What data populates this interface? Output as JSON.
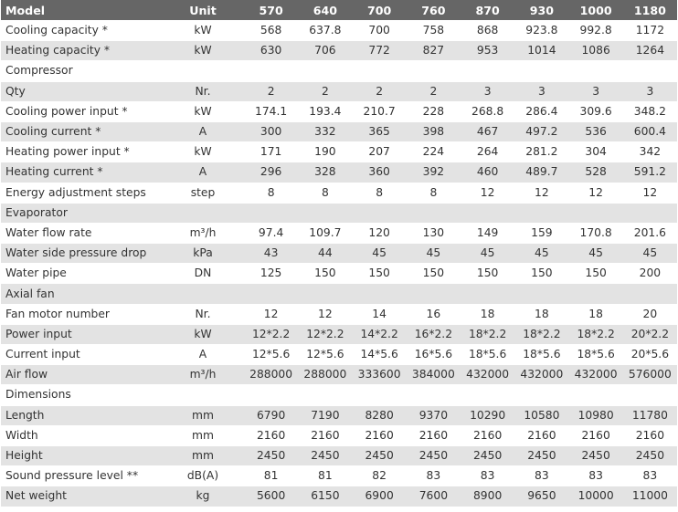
{
  "header": {
    "label": "Model",
    "unit": "Unit",
    "models": [
      "570",
      "640",
      "700",
      "760",
      "870",
      "930",
      "1000",
      "1180"
    ]
  },
  "rows": [
    {
      "kind": "data",
      "label": "Cooling capacity *",
      "unit": "kW",
      "values": [
        "568",
        "637.8",
        "700",
        "758",
        "868",
        "923.8",
        "992.8",
        "1172"
      ]
    },
    {
      "kind": "data",
      "label": "Heating capacity *",
      "unit": "kW",
      "values": [
        "630",
        "706",
        "772",
        "827",
        "953",
        "1014",
        "1086",
        "1264"
      ]
    },
    {
      "kind": "section",
      "label": "Compressor"
    },
    {
      "kind": "data",
      "label": "Qty",
      "unit": "Nr.",
      "values": [
        "2",
        "2",
        "2",
        "2",
        "3",
        "3",
        "3",
        "3"
      ]
    },
    {
      "kind": "data",
      "label": "Cooling power input *",
      "unit": "kW",
      "values": [
        "174.1",
        "193.4",
        "210.7",
        "228",
        "268.8",
        "286.4",
        "309.6",
        "348.2"
      ]
    },
    {
      "kind": "data",
      "label": "Cooling current *",
      "unit": "A",
      "values": [
        "300",
        "332",
        "365",
        "398",
        "467",
        "497.2",
        "536",
        "600.4"
      ]
    },
    {
      "kind": "data",
      "label": "Heating power input *",
      "unit": "kW",
      "values": [
        "171",
        "190",
        "207",
        "224",
        "264",
        "281.2",
        "304",
        "342"
      ]
    },
    {
      "kind": "data",
      "label": "Heating current *",
      "unit": "A",
      "values": [
        "296",
        "328",
        "360",
        "392",
        "460",
        "489.7",
        "528",
        "591.2"
      ]
    },
    {
      "kind": "data",
      "label": "Energy adjustment steps",
      "unit": "step",
      "values": [
        "8",
        "8",
        "8",
        "8",
        "12",
        "12",
        "12",
        "12"
      ]
    },
    {
      "kind": "section",
      "label": "Evaporator"
    },
    {
      "kind": "data",
      "label": "Water flow rate",
      "unit": "m³/h",
      "values": [
        "97.4",
        "109.7",
        "120",
        "130",
        "149",
        "159",
        "170.8",
        "201.6"
      ]
    },
    {
      "kind": "data",
      "label": "Water side pressure drop",
      "unit": "kPa",
      "values": [
        "43",
        "44",
        "45",
        "45",
        "45",
        "45",
        "45",
        "45"
      ]
    },
    {
      "kind": "data",
      "label": "Water pipe",
      "unit": "DN",
      "values": [
        "125",
        "150",
        "150",
        "150",
        "150",
        "150",
        "150",
        "200"
      ]
    },
    {
      "kind": "section",
      "label": "Axial fan"
    },
    {
      "kind": "data",
      "label": "Fan motor number",
      "unit": "Nr.",
      "values": [
        "12",
        "12",
        "14",
        "16",
        "18",
        "18",
        "18",
        "20"
      ]
    },
    {
      "kind": "data",
      "label": "Power input",
      "unit": "kW",
      "values": [
        "12*2.2",
        "12*2.2",
        "14*2.2",
        "16*2.2",
        "18*2.2",
        "18*2.2",
        "18*2.2",
        "20*2.2"
      ]
    },
    {
      "kind": "data",
      "label": "Current input",
      "unit": "A",
      "values": [
        "12*5.6",
        "12*5.6",
        "14*5.6",
        "16*5.6",
        "18*5.6",
        "18*5.6",
        "18*5.6",
        "20*5.6"
      ]
    },
    {
      "kind": "data",
      "label": "Air flow",
      "unit": "m³/h",
      "values": [
        "288000",
        "288000",
        "333600",
        "384000",
        "432000",
        "432000",
        "432000",
        "576000"
      ]
    },
    {
      "kind": "section",
      "label": "Dimensions"
    },
    {
      "kind": "data",
      "label": "Length",
      "unit": "mm",
      "values": [
        "6790",
        "7190",
        "8280",
        "9370",
        "10290",
        "10580",
        "10980",
        "11780"
      ]
    },
    {
      "kind": "data",
      "label": "Width",
      "unit": "mm",
      "values": [
        "2160",
        "2160",
        "2160",
        "2160",
        "2160",
        "2160",
        "2160",
        "2160"
      ]
    },
    {
      "kind": "data",
      "label": "Height",
      "unit": "mm",
      "values": [
        "2450",
        "2450",
        "2450",
        "2450",
        "2450",
        "2450",
        "2450",
        "2450"
      ]
    },
    {
      "kind": "data",
      "label": "Sound pressure level **",
      "unit": "dB(A)",
      "values": [
        "81",
        "81",
        "82",
        "83",
        "83",
        "83",
        "83",
        "83"
      ]
    },
    {
      "kind": "data",
      "label": "Net weight",
      "unit": "kg",
      "values": [
        "5600",
        "6150",
        "6900",
        "7600",
        "8900",
        "9650",
        "10000",
        "11000"
      ]
    }
  ]
}
